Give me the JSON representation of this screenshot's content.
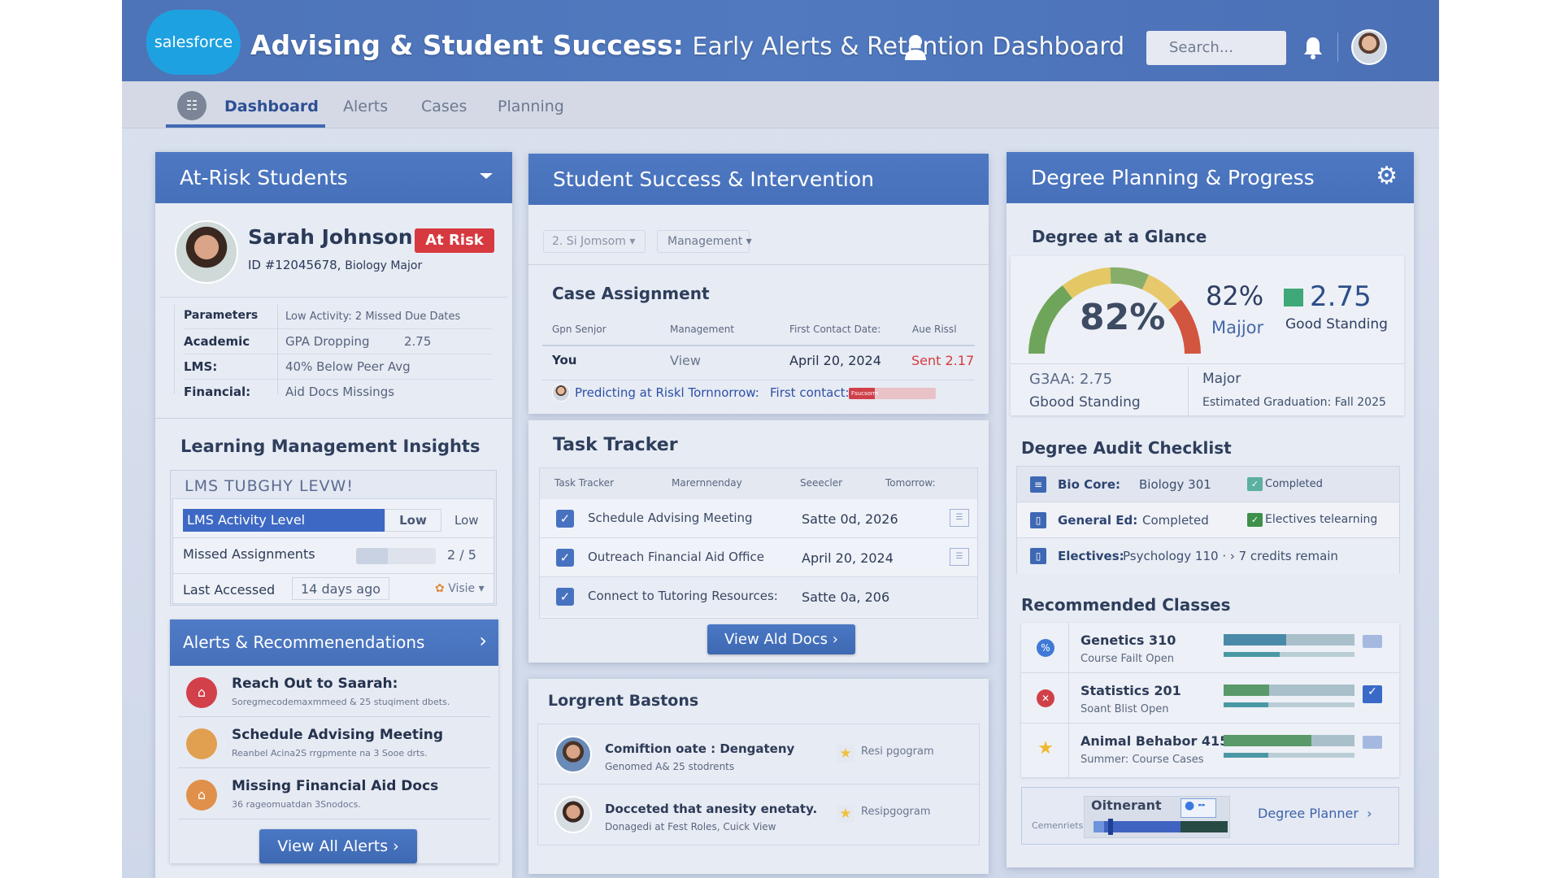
{
  "header": {
    "logo": "salesforce",
    "title_bold": "Advising & Student Success:",
    "title_rest": "Early Alerts & Retention Dashboard",
    "search_placeholder": "Search..."
  },
  "nav": {
    "tabs": [
      {
        "label": "Dashboard",
        "active": true
      },
      {
        "label": "Alerts"
      },
      {
        "label": "Cases"
      },
      {
        "label": "Planning"
      }
    ]
  },
  "at_risk": {
    "title": "At-Risk Students",
    "student": {
      "name": "Sarah Johnson",
      "badge": "At Risk",
      "id": "ID #12045678,",
      "major": "Biology Major"
    },
    "params": [
      {
        "label": "Parameters",
        "value": "Low Activity:  2 Missed Due Dates"
      },
      {
        "label": "Academic",
        "value": "GPA Dropping",
        "extra": "2.75"
      },
      {
        "label": "LMS:",
        "value": "40% Below Peer Avg"
      },
      {
        "label": "Financial:",
        "value": "Aid Docs Missings"
      }
    ]
  },
  "lms": {
    "title": "Learning Management Insights",
    "subtitle": "LMS TUBGHY LEVW!",
    "activity_label": "LMS Activity Level",
    "activity_value": "Low",
    "activity_value2": "Low",
    "missed_label": "Missed Assignments",
    "missed_value": "2 / 5",
    "missed_fraction": 0.4,
    "accessed_label": "Last Accessed",
    "accessed_value": "14 days ago",
    "view_label": "Visie"
  },
  "alerts": {
    "title": "Alerts & Recommenendations",
    "items": [
      {
        "title": "Reach Out to Saarah:",
        "desc": "Soregmecodemaxmmeed & 25 stuqiment dbets.",
        "color": "#d2404a"
      },
      {
        "title": "Schedule Advising Meeting",
        "desc": "Reanbel Acina2S rrgpmente na 3 Sooe drts.",
        "color": "#e0a050"
      },
      {
        "title": "Missing Financial Aid Docs",
        "desc": "36 rageomuatdan 3Snodocs.",
        "color": "#e0904a"
      }
    ],
    "button": "View All Alerts"
  },
  "intervention": {
    "title": "Student Success & Intervention",
    "filters": [
      "2. Si Jomsom",
      "Management"
    ],
    "case": {
      "title": "Case Assignment",
      "columns": [
        "Gpn Senjor",
        "Management",
        "First Contact Date:",
        "Aue Rissl"
      ],
      "row": [
        "You",
        "View",
        "April 20, 2024",
        "Sent 2.17"
      ],
      "predict": "Predicting at Riskl Tornnorrow:",
      "first_contact": "First contact:",
      "progress_label": "Fsucsorm",
      "progress": 0.3
    },
    "tasks": {
      "title": "Task Tracker",
      "columns": [
        "Task Tracker",
        "Marernnenday",
        "Seeecler",
        "Tomorrow:"
      ],
      "rows": [
        {
          "task": "Schedule Advising Meeting",
          "date": "Satte 0d, 2026",
          "checked": true
        },
        {
          "task": "Outreach Financial Aid Office",
          "date": "April 20, 2024",
          "checked": true
        },
        {
          "task": "Connect to Tutoring Resources:",
          "date": "Satte 0a, 206",
          "checked": true
        }
      ],
      "button": "View Ald Docs"
    },
    "urgent": {
      "title": "Lorgrent Bastons",
      "items": [
        {
          "title": "Comiftion oate : Dengateny",
          "desc": "Genomed A& 25 stodrents",
          "tag": "Resi pgogram"
        },
        {
          "title": "Docceted that anesity enetaty.",
          "desc": "Donagedi at Fest Roles, Cuick View",
          "tag": "Resipgogram"
        }
      ]
    }
  },
  "degree": {
    "title": "Degree Planning & Progress",
    "glance_title": "Degree at a Glance",
    "gauge_value": "82%",
    "gauge_percent": 82,
    "major_pct": "82%",
    "major_label": "Majjor",
    "gpa": "2.75",
    "standing": "Good Standing",
    "standing_color": "#3fa878",
    "gsaa": "G3AA: 2.75",
    "gsaa_standing": "Gbood Standing",
    "major2": "Major",
    "graduation": "Estimated Graduation: Fall 2025",
    "audit_title": "Degree Audit Checklist",
    "audit": [
      {
        "label": "Bio Core:",
        "value": "Biology 301",
        "status": "Completed"
      },
      {
        "label": "General Ed:",
        "value": "Completed",
        "status": "Electives telearning"
      },
      {
        "label": "Electives:",
        "value": "Psychology 110 ·  ›  7 credits remain",
        "status": ""
      }
    ],
    "rec_title": "Recommended Classes",
    "classes": [
      {
        "name": "Genetics 310",
        "desc": "Course Failt Open",
        "icon": "percent-icon",
        "bar1": 0.48,
        "bar2": 0.43,
        "color": "#4a8aa8"
      },
      {
        "name": "Statistics 201",
        "desc": "Soant Blist Open",
        "icon": "x-circle-icon",
        "bar1": 0.35,
        "bar2": 0.34,
        "color": "#5a9a6a"
      },
      {
        "name": "Animal Behabor 415",
        "desc": "Summer: Course Cases",
        "icon": "star-icon",
        "bar1": 0.67,
        "bar2": 0.34,
        "color": "#5a9a6a"
      }
    ],
    "planner_title": "Oitnerant",
    "planner_label": "Cemenriets :",
    "planner_link": "Degree Planner",
    "planner_progress": 0.65
  }
}
